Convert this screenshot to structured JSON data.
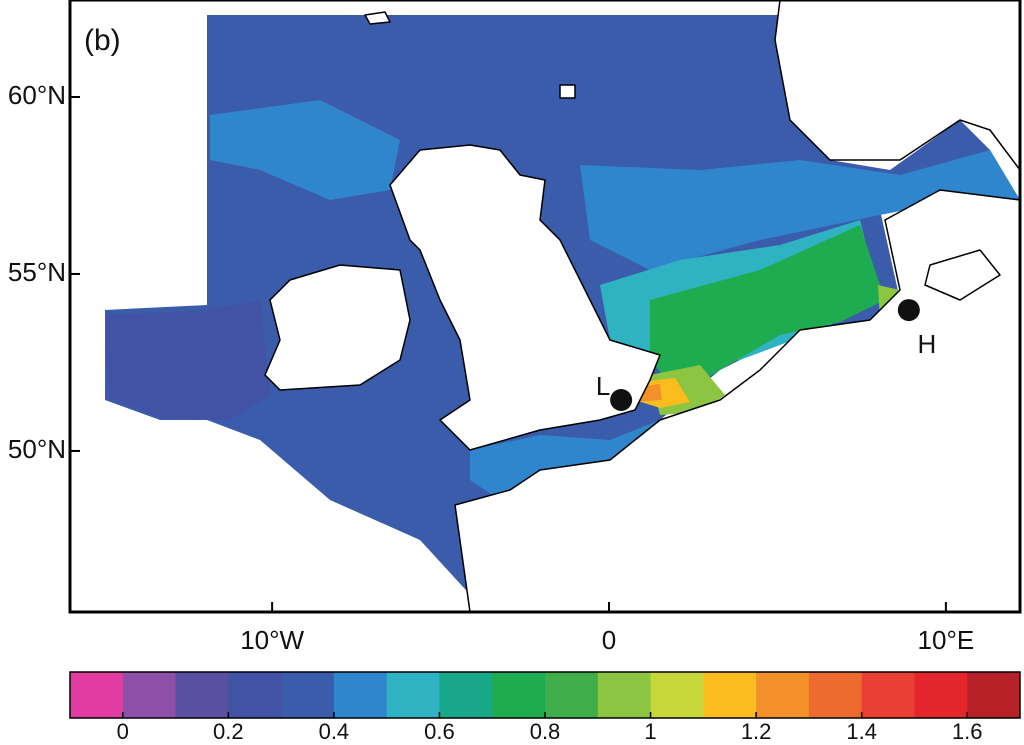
{
  "map": {
    "panel_label": "(b)",
    "lonlim": [
      -16,
      12.2
    ],
    "latlim": [
      45.45,
      62.74
    ],
    "lonticks": [
      {
        "value": -10,
        "label": "10°W"
      },
      0,
      {
        "value": 10,
        "label": "10°E"
      }
    ],
    "latticks": [
      {
        "value": 60,
        "label": "60°N"
      },
      {
        "value": 55,
        "label": "55°N"
      },
      {
        "value": 50,
        "label": "50°N"
      }
    ],
    "points": [
      {
        "label": "L",
        "lon": 0.36,
        "lat": 51.44
      },
      {
        "label": "H",
        "lon": 8.9,
        "lat": 53.98
      }
    ]
  },
  "colorbar": {
    "lim": [
      -0.1,
      1.7
    ],
    "ticks": [
      0,
      0.2,
      0.4,
      0.6,
      0.8,
      1,
      1.2,
      1.4,
      1.6
    ],
    "colors": [
      "#e23ca0",
      "#8e4fa8",
      "#5a4fa0",
      "#4253a5",
      "#3a5caa",
      "#2f86cc",
      "#2fb3c3",
      "#19a78a",
      "#1fab4f",
      "#3fae4a",
      "#8cc542",
      "#c8d83a",
      "#fbbd1e",
      "#f3902a",
      "#ee6b2f",
      "#ea3f35",
      "#e3262b",
      "#b52127"
    ]
  }
}
